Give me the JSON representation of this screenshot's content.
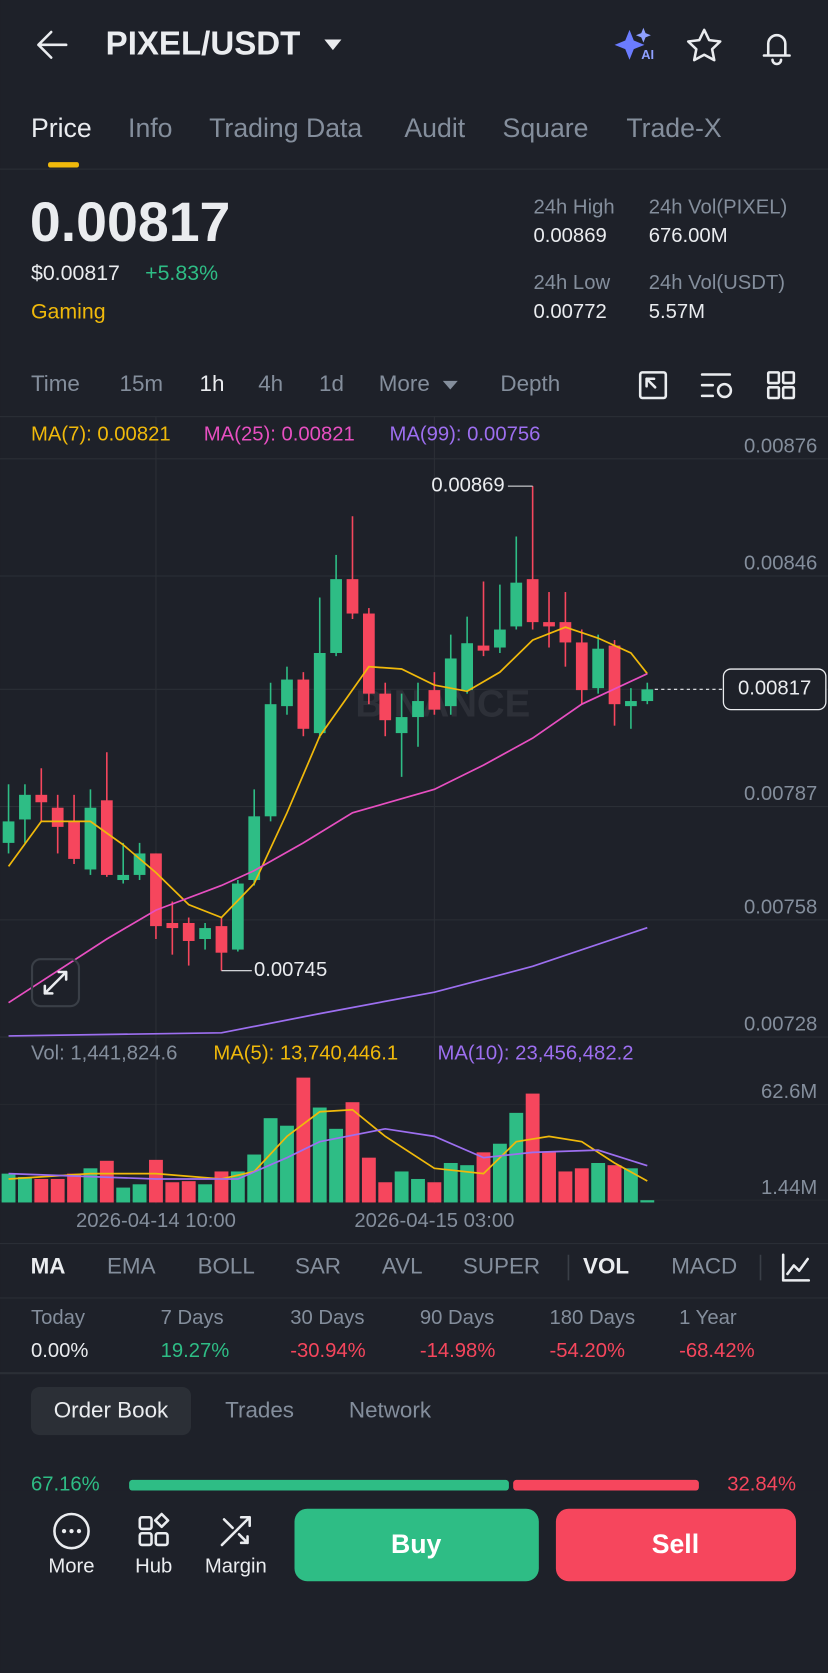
{
  "header": {
    "title": "PIXEL/USDT"
  },
  "tabs": [
    "Price",
    "Info",
    "Trading Data",
    "Audit",
    "Square",
    "Trade-X"
  ],
  "ticker": {
    "price": "0.00817",
    "usd_price": "$0.00817",
    "change": "+5.83%",
    "tag": "Gaming"
  },
  "stats": [
    {
      "label": "24h High",
      "value": "0.00869"
    },
    {
      "label": "24h Vol(PIXEL)",
      "value": "676.00M"
    },
    {
      "label": "24h Low",
      "value": "0.00772"
    },
    {
      "label": "24h Vol(USDT)",
      "value": "5.57M"
    }
  ],
  "intervals": [
    "Time",
    "15m",
    "1h",
    "4h",
    "1d",
    "More",
    "Depth"
  ],
  "chart_data": {
    "type": "candlestick",
    "categories": [
      null,
      null,
      null,
      null,
      null,
      null,
      null,
      null,
      null,
      "2026-04-14 10:00",
      null,
      null,
      null,
      null,
      null,
      null,
      null,
      null,
      null,
      null,
      null,
      null,
      null,
      null,
      null,
      null,
      "2026-04-15 03:00",
      null,
      null,
      null,
      null,
      null,
      null,
      null,
      null,
      null,
      null,
      null,
      null,
      null
    ],
    "open": [
      0.007777,
      0.007837,
      0.0079,
      0.007867,
      0.007832,
      0.007709,
      0.007886,
      0.007682,
      0.007695,
      0.00775,
      0.007572,
      0.007572,
      0.007531,
      0.007564,
      0.007504,
      0.007682,
      0.007845,
      0.008127,
      0.008195,
      0.008058,
      0.008263,
      0.008452,
      0.008364,
      0.008159,
      0.008058,
      0.008099,
      0.008168,
      0.008127,
      0.008168,
      0.008282,
      0.008277,
      0.008331,
      0.008452,
      0.008342,
      0.008342,
      0.00829,
      0.008173,
      0.008282,
      0.008127,
      0.00814
    ],
    "high": [
      0.007927,
      0.007927,
      0.007968,
      0.0079,
      0.0079,
      0.007914,
      0.008009,
      0.007777,
      0.007777,
      0.00775,
      0.007627,
      0.007586,
      0.007572,
      0.007586,
      0.007682,
      0.007914,
      0.008187,
      0.008228,
      0.008214,
      0.008405,
      0.008514,
      0.008613,
      0.008378,
      0.008187,
      0.008159,
      0.008187,
      0.008214,
      0.00831,
      0.008356,
      0.008446,
      0.008438,
      0.008561,
      0.00869,
      0.008419,
      0.008419,
      0.008323,
      0.00831,
      0.008296,
      0.008173,
      0.008187
    ],
    "low": [
      0.00775,
      0.007777,
      0.007832,
      0.00775,
      0.007723,
      0.007695,
      0.00769,
      0.007673,
      0.007682,
      0.007531,
      0.007491,
      0.007463,
      0.007504,
      0.00745,
      0.007499,
      0.007668,
      0.007832,
      0.008105,
      0.00805,
      0.008045,
      0.008255,
      0.00835,
      0.008132,
      0.00805,
      0.007946,
      0.008023,
      0.008105,
      0.008105,
      0.008159,
      0.008255,
      0.008263,
      0.008323,
      0.008323,
      0.008277,
      0.008228,
      0.008132,
      0.008159,
      0.008077,
      0.008069,
      0.008132
    ],
    "close": [
      0.007832,
      0.0079,
      0.007881,
      0.007818,
      0.007736,
      0.007867,
      0.007695,
      0.007695,
      0.00775,
      0.007564,
      0.007559,
      0.007526,
      0.007559,
      0.007496,
      0.007673,
      0.007845,
      0.008132,
      0.008195,
      0.008069,
      0.008263,
      0.008452,
      0.008364,
      0.008159,
      0.008091,
      0.008099,
      0.00814,
      0.008118,
      0.008249,
      0.008288,
      0.008269,
      0.008323,
      0.008443,
      0.008342,
      0.008331,
      0.00829,
      0.008168,
      0.008274,
      0.008132,
      0.00814,
      0.00817
    ],
    "up_color": "#2ebd85",
    "down_color": "#f6465d",
    "ylim": [
      0.00728,
      0.00876
    ],
    "yticks": [
      0.00876,
      0.00846,
      0.00817,
      0.00787,
      0.00758,
      0.00728
    ],
    "grid": true,
    "watermark": "BINANCE",
    "series": [
      {
        "legend": "MA(7): 0.00821",
        "color": "#f0b90b",
        "x": [
          0,
          2,
          5,
          7,
          9,
          11,
          13,
          15,
          17,
          19,
          22,
          24,
          26,
          28,
          30,
          32,
          34,
          36,
          38,
          39
        ],
        "values": [
          0.007717,
          0.007832,
          0.007832,
          0.007772,
          0.007701,
          0.007619,
          0.007586,
          0.007673,
          0.007854,
          0.00805,
          0.008228,
          0.008222,
          0.008181,
          0.008165,
          0.008214,
          0.008296,
          0.008329,
          0.008301,
          0.008263,
          0.00821
        ]
      },
      {
        "legend": "MA(25): 0.00821",
        "color": "#e74fc1",
        "x": [
          0,
          6,
          9,
          13,
          15,
          18,
          21,
          26,
          29,
          32,
          35,
          39
        ],
        "values": [
          0.007368,
          0.007531,
          0.007605,
          0.007668,
          0.007706,
          0.007777,
          0.007854,
          0.007914,
          0.007976,
          0.008045,
          0.008132,
          0.00821
        ]
      },
      {
        "legend": "MA(99): 0.00756",
        "color": "#9d6ff0",
        "x": [
          0,
          13,
          19,
          26,
          32,
          39
        ],
        "values": [
          0.007283,
          0.007291,
          0.00734,
          0.007395,
          0.007461,
          0.00756
        ]
      }
    ],
    "volume": {
      "legend": "Vol: 1,441,824.6",
      "values": [
        18400000,
        16300000,
        15000000,
        15000000,
        18400000,
        21800000,
        26600000,
        9500000,
        11600000,
        27200000,
        12900000,
        13600000,
        11600000,
        19800000,
        19800000,
        30600000,
        53800000,
        49000000,
        79700000,
        60600000,
        47000000,
        64000000,
        28600000,
        12900000,
        19800000,
        15000000,
        12900000,
        25200000,
        23800000,
        32000000,
        37500000,
        57200000,
        69500000,
        32000000,
        19800000,
        21800000,
        25200000,
        23800000,
        21800000,
        1441824.6
      ],
      "vlim": [
        0,
        86500000
      ],
      "vticks": [
        {
          "value": 62600000,
          "label": "62.6M"
        },
        {
          "value": 1440000,
          "label": "1.44M"
        }
      ],
      "series": [
        {
          "legend": "MA(5): 13,740,446.1",
          "color": "#f0b90b",
          "x": [
            0,
            5,
            9,
            13,
            15,
            17,
            19,
            21,
            23,
            26,
            29,
            31,
            33,
            35,
            37,
            39
          ],
          "values": [
            15000000,
            18400000,
            18400000,
            15000000,
            19800000,
            42200000,
            57900000,
            59200000,
            42200000,
            21800000,
            18400000,
            38800000,
            42200000,
            38800000,
            25200000,
            13740446.1
          ]
        },
        {
          "legend": "MA(10): 23,456,482.2",
          "color": "#9d6ff0",
          "x": [
            0,
            9,
            14,
            17,
            19,
            23,
            26,
            29,
            32,
            36,
            39
          ],
          "values": [
            18400000,
            15000000,
            15000000,
            28600000,
            38800000,
            47000000,
            42200000,
            28600000,
            32000000,
            33400000,
            23456482.2
          ]
        }
      ]
    }
  },
  "indicators": [
    "MA",
    "EMA",
    "BOLL",
    "SAR",
    "AVL",
    "SUPER",
    "VOL",
    "MACD"
  ],
  "performance": [
    {
      "label": "Today",
      "value": "0.00%",
      "color": "#eaecef"
    },
    {
      "label": "7 Days",
      "value": "19.27%",
      "color": "#2ebd85"
    },
    {
      "label": "30 Days",
      "value": "-30.94%",
      "color": "#f6465d"
    },
    {
      "label": "90 Days",
      "value": "-14.98%",
      "color": "#f6465d"
    },
    {
      "label": "180 Days",
      "value": "-54.20%",
      "color": "#f6465d"
    },
    {
      "label": "1 Year",
      "value": "-68.42%",
      "color": "#f6465d"
    }
  ],
  "book_tabs": [
    "Order Book",
    "Trades",
    "Network"
  ],
  "book_ratio": {
    "buy": {
      "value": 67.16,
      "label": "67.16%"
    },
    "sell": {
      "value": 32.84,
      "label": "32.84%"
    }
  },
  "nav": [
    "More",
    "Hub",
    "Margin"
  ],
  "actions": [
    "Buy",
    "Sell"
  ]
}
